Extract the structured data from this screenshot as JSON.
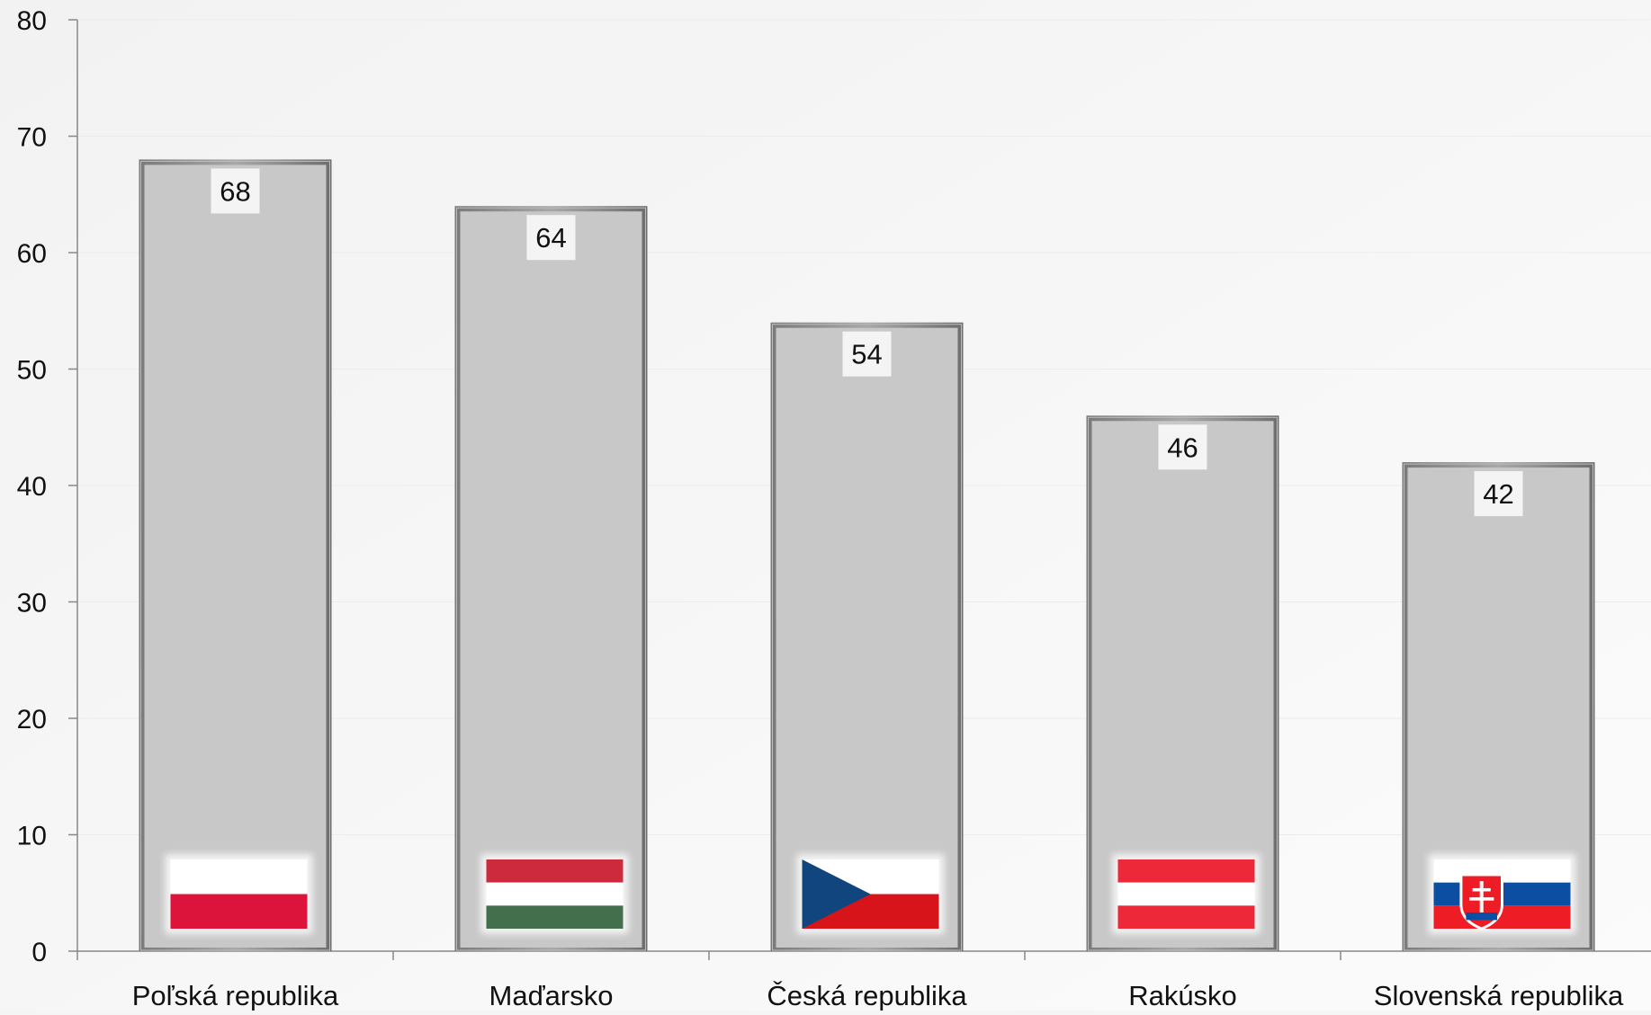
{
  "chart_data": {
    "type": "bar",
    "categories": [
      "Poľská republika",
      "Maďarsko",
      "Česká republika",
      "Rakúsko",
      "Slovenská republika"
    ],
    "values": [
      68,
      64,
      54,
      46,
      42
    ],
    "data_labels": [
      "68",
      "64",
      "54",
      "46",
      "42"
    ],
    "y_ticks": [
      "0",
      "10",
      "20",
      "30",
      "40",
      "50",
      "60",
      "70",
      "80"
    ],
    "ylim": [
      0,
      80
    ],
    "grid": true,
    "legend": "none",
    "bar_color": "#c8c8c8",
    "flag_icons": [
      "flag-poland-icon",
      "flag-hungary-icon",
      "flag-czech-icon",
      "flag-austria-icon",
      "flag-slovakia-icon"
    ]
  }
}
